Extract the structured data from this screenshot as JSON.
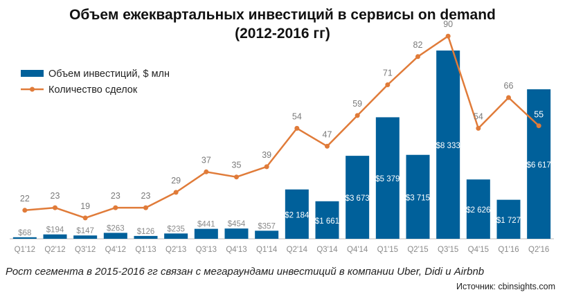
{
  "title_line1": "Объем ежеквартальных инвестиций в сервисы on demand",
  "title_line2": "(2012-2016 гг)",
  "footnote": "Рост сегмента в 2015-2016 гг связан с мегараундами инвестиций в компании Uber, Didi и Airbnb",
  "source": "Источник: cbinsights.com",
  "colors": {
    "bars": "#00609a",
    "line": "#e07b39",
    "bar_label_light": "#ffffff",
    "bar_label_dark": "#8a8a8a"
  },
  "chart_data": {
    "type": "bar",
    "legend_position": "top-left",
    "categories": [
      "Q1'12",
      "Q2'12",
      "Q3'12",
      "Q4'12",
      "Q1'13",
      "Q2'13",
      "Q3'13",
      "Q4'13",
      "Q1'14",
      "Q2'14",
      "Q3'14",
      "Q4'14",
      "Q1'15",
      "Q2'15",
      "Q3'15",
      "Q4'15",
      "Q1'16",
      "Q2'16"
    ],
    "series": [
      {
        "name": "Объем инвестиций, $ млн",
        "type": "bar",
        "values": [
          68,
          194,
          147,
          263,
          126,
          235,
          441,
          454,
          357,
          2184,
          1661,
          3673,
          5379,
          3715,
          8333,
          2626,
          1727,
          6617
        ],
        "labels": [
          "$68",
          "$194",
          "$147",
          "$263",
          "$126",
          "$235",
          "$441",
          "$454",
          "$357",
          "$2 184",
          "$1 661",
          "$3 673",
          "$5 379",
          "$3 715",
          "$8 333",
          "$2 626",
          "$1 727",
          "$6 617"
        ]
      },
      {
        "name": "Количество сделок",
        "type": "line",
        "values": [
          22,
          23,
          19,
          23,
          23,
          29,
          37,
          35,
          39,
          54,
          47,
          59,
          71,
          82,
          90,
          54,
          66,
          55
        ]
      }
    ]
  }
}
